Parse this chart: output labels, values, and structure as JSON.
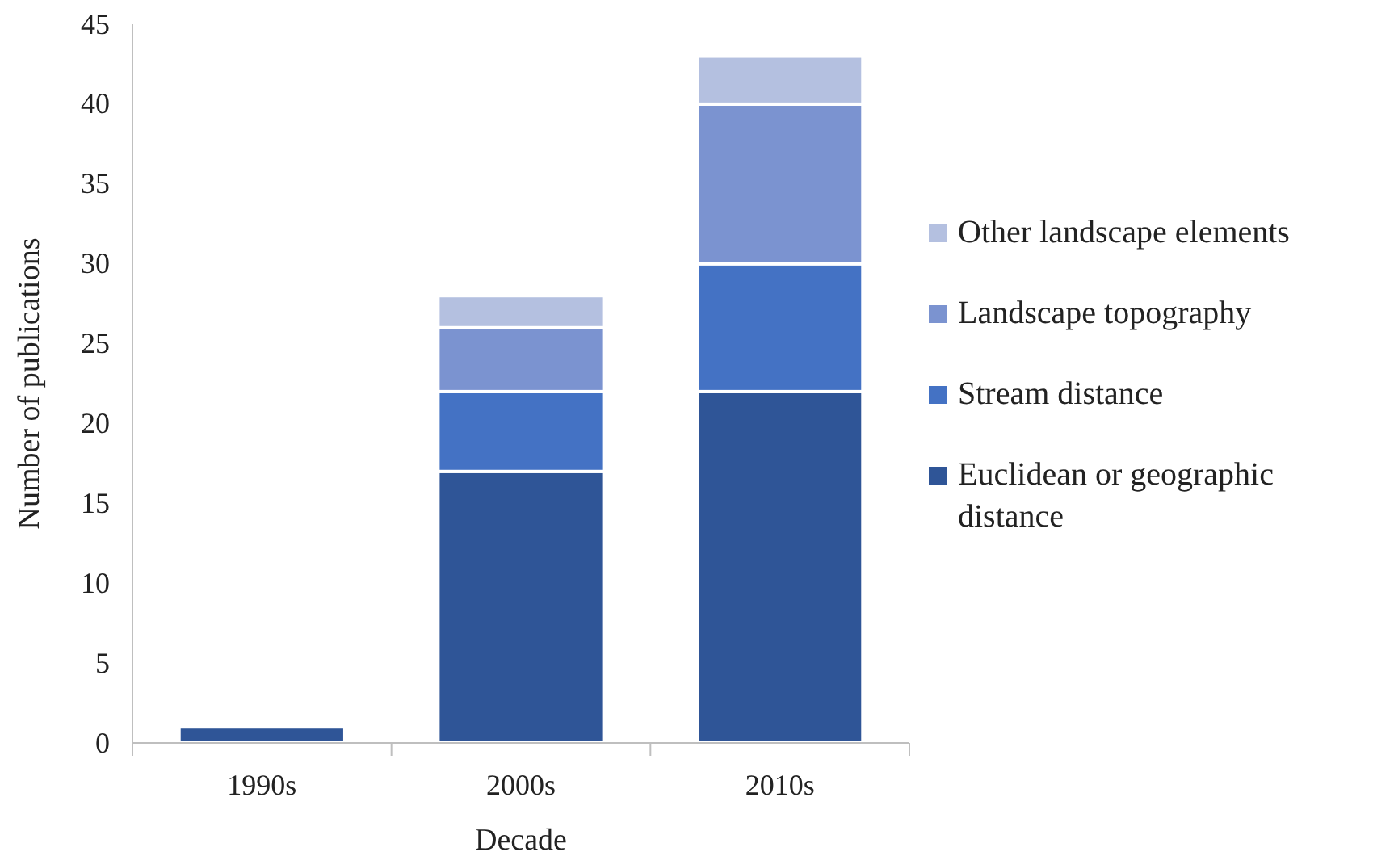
{
  "chart_data": {
    "type": "bar",
    "stacked": true,
    "xlabel": "Decade",
    "ylabel": "Number of publications",
    "categories": [
      "1990s",
      "2000s",
      "2010s"
    ],
    "series": [
      {
        "name": "Euclidean or geographic distance",
        "color": "#2f5597",
        "values": [
          1,
          17,
          22
        ]
      },
      {
        "name": "Stream distance",
        "color": "#4472c4",
        "values": [
          0,
          5,
          8
        ]
      },
      {
        "name": "Landscape topography",
        "color": "#7b93d0",
        "values": [
          0,
          4,
          10
        ]
      },
      {
        "name": "Other landscape elements",
        "color": "#b4c0e0",
        "values": [
          0,
          2,
          3
        ]
      }
    ],
    "ylim": [
      0,
      45
    ],
    "yticks": [
      0,
      5,
      10,
      15,
      20,
      25,
      30,
      35,
      40,
      45
    ],
    "grid": false,
    "legend": "right"
  }
}
